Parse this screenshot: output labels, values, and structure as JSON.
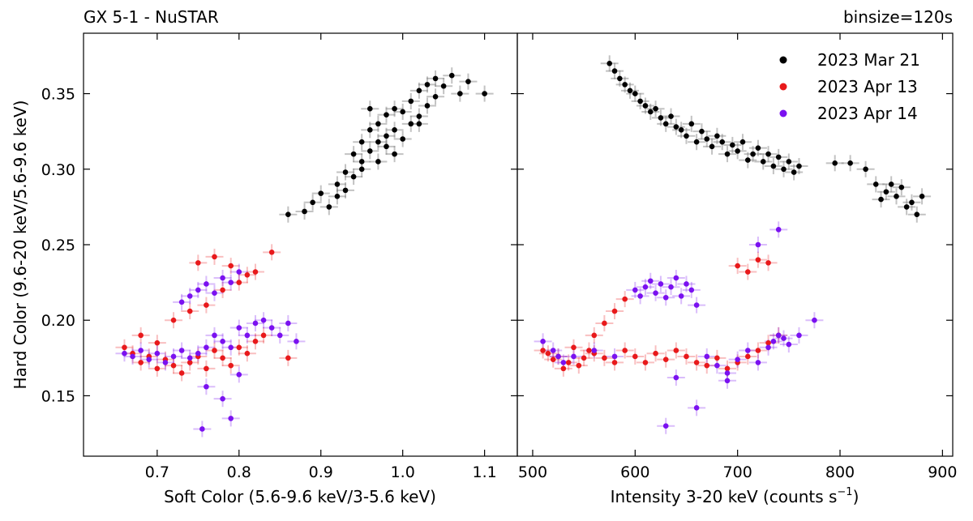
{
  "figure": {
    "title_left": "GX 5-1 - NuSTAR",
    "title_right": "binsize=120s"
  },
  "chart_data": [
    {
      "type": "scatter",
      "panel": "left",
      "xlabel": "Soft Color (5.6-9.6 keV/3-5.6 keV)",
      "ylabel": "Hard Color (9.6-20 keV/5.6-9.6 keV)",
      "xlim": [
        0.61,
        1.14
      ],
      "ylim": [
        0.11,
        0.39
      ],
      "xticks": [
        0.7,
        0.8,
        0.9,
        1.0,
        1.1
      ],
      "xtick_labels": [
        "0.7",
        "0.8",
        "0.9",
        "1.0",
        "1.1"
      ],
      "yticks": [
        0.15,
        0.2,
        0.25,
        0.3,
        0.35
      ],
      "ytick_labels": [
        "0.15",
        "0.20",
        "0.25",
        "0.30",
        "0.35"
      ],
      "error_bars": true,
      "series": [
        {
          "name": "2023 Mar 21",
          "color": "#000000",
          "x": [
            0.86,
            0.88,
            0.89,
            0.9,
            0.91,
            0.92,
            0.92,
            0.93,
            0.93,
            0.94,
            0.94,
            0.95,
            0.95,
            0.96,
            0.96,
            0.97,
            0.97,
            0.98,
            0.98,
            0.99,
            0.99,
            1.0,
            1.0,
            1.01,
            1.01,
            1.02,
            1.02,
            1.03,
            1.03,
            1.04,
            1.04,
            1.05,
            1.06,
            1.07,
            1.08,
            1.1,
            0.95,
            0.97,
            0.99,
            1.02,
            0.96,
            0.98
          ],
          "y": [
            0.27,
            0.272,
            0.278,
            0.284,
            0.275,
            0.29,
            0.282,
            0.298,
            0.286,
            0.31,
            0.295,
            0.318,
            0.305,
            0.326,
            0.312,
            0.33,
            0.318,
            0.336,
            0.322,
            0.34,
            0.326,
            0.338,
            0.32,
            0.345,
            0.33,
            0.352,
            0.335,
            0.356,
            0.342,
            0.36,
            0.348,
            0.355,
            0.362,
            0.35,
            0.358,
            0.35,
            0.3,
            0.305,
            0.31,
            0.33,
            0.34,
            0.315
          ]
        },
        {
          "name": "2023 Apr 13",
          "color": "#e8191b",
          "x": [
            0.66,
            0.67,
            0.68,
            0.69,
            0.7,
            0.71,
            0.72,
            0.73,
            0.74,
            0.75,
            0.76,
            0.77,
            0.78,
            0.79,
            0.8,
            0.81,
            0.82,
            0.83,
            0.68,
            0.7,
            0.72,
            0.74,
            0.76,
            0.78,
            0.8,
            0.82,
            0.75,
            0.77,
            0.79,
            0.81,
            0.84,
            0.86
          ],
          "y": [
            0.182,
            0.178,
            0.172,
            0.176,
            0.168,
            0.174,
            0.17,
            0.165,
            0.172,
            0.176,
            0.168,
            0.18,
            0.175,
            0.17,
            0.182,
            0.178,
            0.186,
            0.19,
            0.19,
            0.185,
            0.2,
            0.206,
            0.21,
            0.22,
            0.225,
            0.232,
            0.238,
            0.242,
            0.236,
            0.23,
            0.245,
            0.175
          ]
        },
        {
          "name": "2023 Apr 14",
          "color": "#7a11f0",
          "x": [
            0.66,
            0.67,
            0.68,
            0.69,
            0.7,
            0.71,
            0.72,
            0.73,
            0.74,
            0.75,
            0.76,
            0.77,
            0.78,
            0.79,
            0.8,
            0.81,
            0.82,
            0.83,
            0.84,
            0.85,
            0.86,
            0.87,
            0.74,
            0.75,
            0.76,
            0.77,
            0.78,
            0.73,
            0.79,
            0.8,
            0.76,
            0.78,
            0.8,
            0.755,
            0.79
          ],
          "y": [
            0.178,
            0.176,
            0.18,
            0.174,
            0.178,
            0.172,
            0.176,
            0.18,
            0.175,
            0.178,
            0.182,
            0.19,
            0.186,
            0.182,
            0.195,
            0.19,
            0.198,
            0.2,
            0.195,
            0.19,
            0.198,
            0.186,
            0.216,
            0.22,
            0.224,
            0.218,
            0.228,
            0.212,
            0.225,
            0.232,
            0.156,
            0.148,
            0.164,
            0.128,
            0.135
          ]
        }
      ]
    },
    {
      "type": "scatter",
      "panel": "right",
      "xlabel": "Intensity 3-20 keV (counts s",
      "xlabel_sup": "−1",
      "xlabel_end": ")",
      "ylabel": "",
      "xlim": [
        485,
        910
      ],
      "ylim": [
        0.11,
        0.39
      ],
      "xticks": [
        500,
        600,
        700,
        800,
        900
      ],
      "xtick_labels": [
        "500",
        "600",
        "700",
        "800",
        "900"
      ],
      "yticks": [
        0.15,
        0.2,
        0.25,
        0.3,
        0.35
      ],
      "error_bars": true,
      "legend": {
        "position": "top-right"
      },
      "series": [
        {
          "name": "2023 Mar 21",
          "color": "#000000",
          "x": [
            575,
            580,
            585,
            590,
            595,
            600,
            605,
            610,
            615,
            620,
            625,
            630,
            635,
            640,
            645,
            650,
            655,
            660,
            665,
            670,
            675,
            680,
            685,
            690,
            695,
            700,
            705,
            710,
            715,
            720,
            725,
            730,
            735,
            740,
            745,
            750,
            755,
            760,
            795,
            810,
            825,
            835,
            840,
            845,
            850,
            855,
            860,
            865,
            870,
            875,
            880
          ],
          "y": [
            0.37,
            0.365,
            0.36,
            0.356,
            0.352,
            0.35,
            0.345,
            0.342,
            0.338,
            0.34,
            0.334,
            0.33,
            0.335,
            0.328,
            0.326,
            0.322,
            0.33,
            0.318,
            0.325,
            0.32,
            0.315,
            0.322,
            0.318,
            0.31,
            0.316,
            0.312,
            0.318,
            0.306,
            0.31,
            0.314,
            0.305,
            0.31,
            0.302,
            0.308,
            0.3,
            0.305,
            0.298,
            0.302,
            0.304,
            0.304,
            0.3,
            0.29,
            0.28,
            0.285,
            0.29,
            0.282,
            0.288,
            0.275,
            0.278,
            0.27,
            0.282
          ]
        },
        {
          "name": "2023 Apr 13",
          "color": "#e8191b",
          "x": [
            510,
            515,
            520,
            525,
            530,
            535,
            540,
            545,
            550,
            555,
            560,
            570,
            580,
            590,
            600,
            610,
            620,
            630,
            640,
            650,
            660,
            670,
            680,
            690,
            700,
            710,
            720,
            730,
            740,
            560,
            570,
            580,
            590,
            700,
            710,
            720,
            730
          ],
          "y": [
            0.18,
            0.178,
            0.174,
            0.176,
            0.168,
            0.172,
            0.182,
            0.17,
            0.175,
            0.18,
            0.178,
            0.175,
            0.172,
            0.18,
            0.176,
            0.172,
            0.178,
            0.174,
            0.18,
            0.176,
            0.172,
            0.17,
            0.175,
            0.168,
            0.172,
            0.176,
            0.18,
            0.185,
            0.19,
            0.19,
            0.198,
            0.206,
            0.214,
            0.236,
            0.232,
            0.24,
            0.238
          ]
        },
        {
          "name": "2023 Apr 14",
          "color": "#7a11f0",
          "x": [
            510,
            520,
            525,
            530,
            540,
            560,
            580,
            600,
            605,
            610,
            615,
            620,
            625,
            630,
            635,
            640,
            645,
            650,
            655,
            660,
            670,
            680,
            690,
            700,
            710,
            720,
            730,
            735,
            740,
            745,
            750,
            760,
            775,
            630,
            640,
            660,
            690,
            720,
            740
          ],
          "y": [
            0.186,
            0.18,
            0.176,
            0.172,
            0.176,
            0.18,
            0.176,
            0.22,
            0.216,
            0.222,
            0.226,
            0.218,
            0.224,
            0.215,
            0.222,
            0.228,
            0.216,
            0.224,
            0.22,
            0.21,
            0.176,
            0.17,
            0.16,
            0.174,
            0.18,
            0.172,
            0.182,
            0.186,
            0.19,
            0.188,
            0.184,
            0.19,
            0.2,
            0.13,
            0.162,
            0.142,
            0.165,
            0.25,
            0.26
          ]
        }
      ]
    }
  ]
}
